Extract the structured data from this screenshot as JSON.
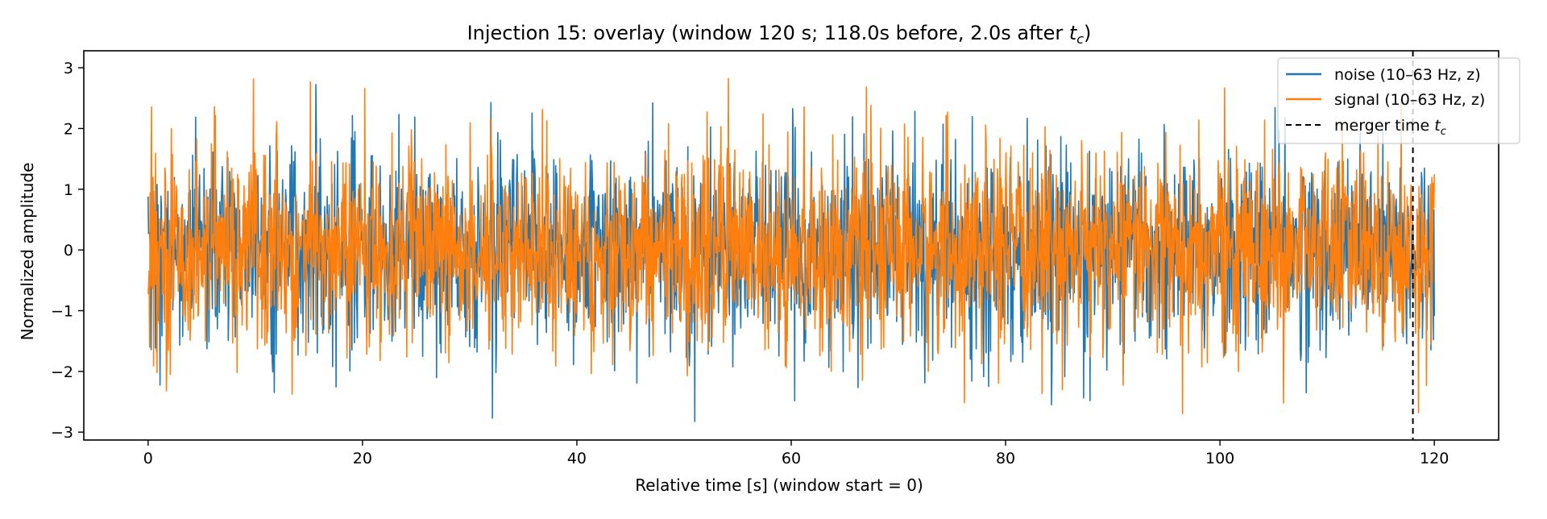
{
  "chart_data": {
    "type": "line",
    "title": "Injection 15: overlay (window 120 s; 118.0s before, 2.0s after ",
    "title_sub_t": "t",
    "title_sub_c": "c",
    "title_tail": ")",
    "xlabel": "Relative time [s] (window start = 0)",
    "ylabel": "Normalized amplitude",
    "xlim": [
      -6,
      126
    ],
    "ylim": [
      -3.13,
      3.28
    ],
    "xticks": [
      0,
      20,
      40,
      60,
      80,
      100,
      120
    ],
    "yticks": [
      -3,
      -2,
      -1,
      0,
      1,
      2,
      3
    ],
    "xtick_labels": [
      "0",
      "20",
      "40",
      "60",
      "80",
      "100",
      "120"
    ],
    "ytick_labels": [
      "−3",
      "−2",
      "−1",
      "0",
      "1",
      "2",
      "3"
    ],
    "x_range": [
      0,
      120
    ],
    "grid": false,
    "legend_position": "top-right",
    "series": [
      {
        "name": "noise (10–63 Hz, z)",
        "color": "#1f77b4",
        "envelope": [
          -2.85,
          2.95
        ],
        "typical": [
          -2.2,
          2.3
        ]
      },
      {
        "name": "signal (10–63 Hz, z)",
        "color": "#ff7f0e",
        "envelope": [
          -2.8,
          2.9
        ],
        "typical": [
          -2.2,
          2.3
        ]
      }
    ],
    "vline": {
      "x": 118.0,
      "label": "merger time ",
      "label_sub_t": "t",
      "label_sub_c": "c",
      "style": "dashed",
      "color": "#000000"
    }
  }
}
